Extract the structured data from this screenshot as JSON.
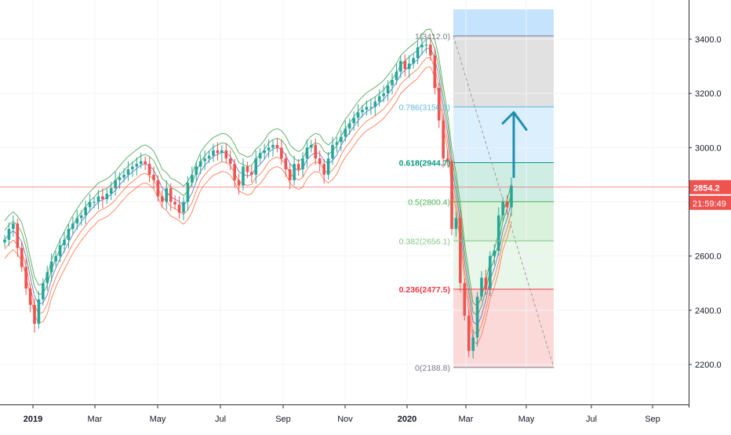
{
  "chart_data": {
    "type": "candlestick",
    "y_axis": {
      "position": "right",
      "ticks": [
        "3400.0",
        "3200.0",
        "3000.0",
        "2800.0",
        "2600.0",
        "2400.0",
        "2200.0"
      ],
      "tick_values": [
        3400,
        3200,
        3000,
        2800,
        2600,
        2400,
        2200
      ],
      "range": [
        2060,
        3510
      ]
    },
    "x_axis": {
      "ticks": [
        "2019",
        "Mar",
        "May",
        "Jul",
        "Sep",
        "Nov",
        "2020",
        "Mar",
        "May",
        "Jul",
        "Sep"
      ],
      "bold_ticks": [
        "2019",
        "2020"
      ]
    },
    "last_price": {
      "value": 2854.2,
      "label": "2854.2",
      "countdown": "21:59:49",
      "color": "#ef5350"
    },
    "series_closes": [
      2660,
      2700,
      2720,
      2630,
      2560,
      2480,
      2420,
      2350,
      2440,
      2500,
      2540,
      2580,
      2600,
      2640,
      2660,
      2700,
      2720,
      2740,
      2750,
      2780,
      2800,
      2800,
      2820,
      2810,
      2830,
      2850,
      2880,
      2890,
      2900,
      2920,
      2930,
      2940,
      2950,
      2940,
      2900,
      2880,
      2820,
      2800,
      2850,
      2800,
      2790,
      2760,
      2800,
      2870,
      2900,
      2930,
      2950,
      2960,
      2970,
      2990,
      2980,
      2990,
      2960,
      2940,
      2880,
      2860,
      2930,
      2910,
      2900,
      2960,
      2980,
      2990,
      3000,
      3010,
      3000,
      2960,
      2920,
      2880,
      2940,
      2920,
      2960,
      3000,
      3010,
      2960,
      2940,
      2900,
      2960,
      3010,
      3020,
      3040,
      3070,
      3090,
      3110,
      3130,
      3140,
      3150,
      3150,
      3170,
      3190,
      3200,
      3230,
      3250,
      3280,
      3320,
      3290,
      3310,
      3330,
      3370,
      3380,
      3380,
      3340,
      3220,
      3100,
      2960,
      2950,
      2700,
      2740,
      2500,
      2380,
      2250,
      2300,
      2450,
      2520,
      2480,
      2600,
      2620,
      2750,
      2800,
      2780,
      2860
    ],
    "fibonacci": {
      "levels": [
        {
          "ratio": "1",
          "value": 3412.0,
          "label": "1(3412.0)",
          "color": "#787b86"
        },
        {
          "ratio": "0.786",
          "value": 3150.3,
          "label": "0.786(3150.3)",
          "color": "#5bb8e0"
        },
        {
          "ratio": "0.618",
          "value": 2944.7,
          "label": "0.618(2944.7)",
          "color": "#089981"
        },
        {
          "ratio": "0.5",
          "value": 2800.4,
          "label": "0.5(2800.4)",
          "color": "#4caf50"
        },
        {
          "ratio": "0.382",
          "value": 2656.1,
          "label": "0.382(2656.1)",
          "color": "#81c784"
        },
        {
          "ratio": "0.236",
          "value": 2477.5,
          "label": "0.236(2477.5)",
          "color": "#f23645"
        },
        {
          "ratio": "0",
          "value": 2188.8,
          "label": "0(2188.8)",
          "color": "#787b86"
        }
      ],
      "bands": [
        {
          "from": 3412.0,
          "to": 3510,
          "color": "#bbdefb"
        },
        {
          "from": 3150.3,
          "to": 3412.0,
          "color": "#dcdcdc"
        },
        {
          "from": 2944.7,
          "to": 3150.3,
          "color": "#d6ecfb"
        },
        {
          "from": 2800.4,
          "to": 2944.7,
          "color": "#c8eadf"
        },
        {
          "from": 2656.1,
          "to": 2800.4,
          "color": "#d4f0d6"
        },
        {
          "from": 2477.5,
          "to": 2656.1,
          "color": "#e5f5e6"
        },
        {
          "from": 2188.8,
          "to": 2477.5,
          "color": "#fbd2d2"
        }
      ]
    },
    "annotation_arrow": {
      "from": 2875,
      "to": 3130,
      "color": "#1f8fb0"
    },
    "colors": {
      "up": "#26a69a",
      "down": "#ef5350",
      "band_upper": "#43a047",
      "band_mid": "#5c6bc0",
      "band_lower": "#ff7043"
    }
  }
}
